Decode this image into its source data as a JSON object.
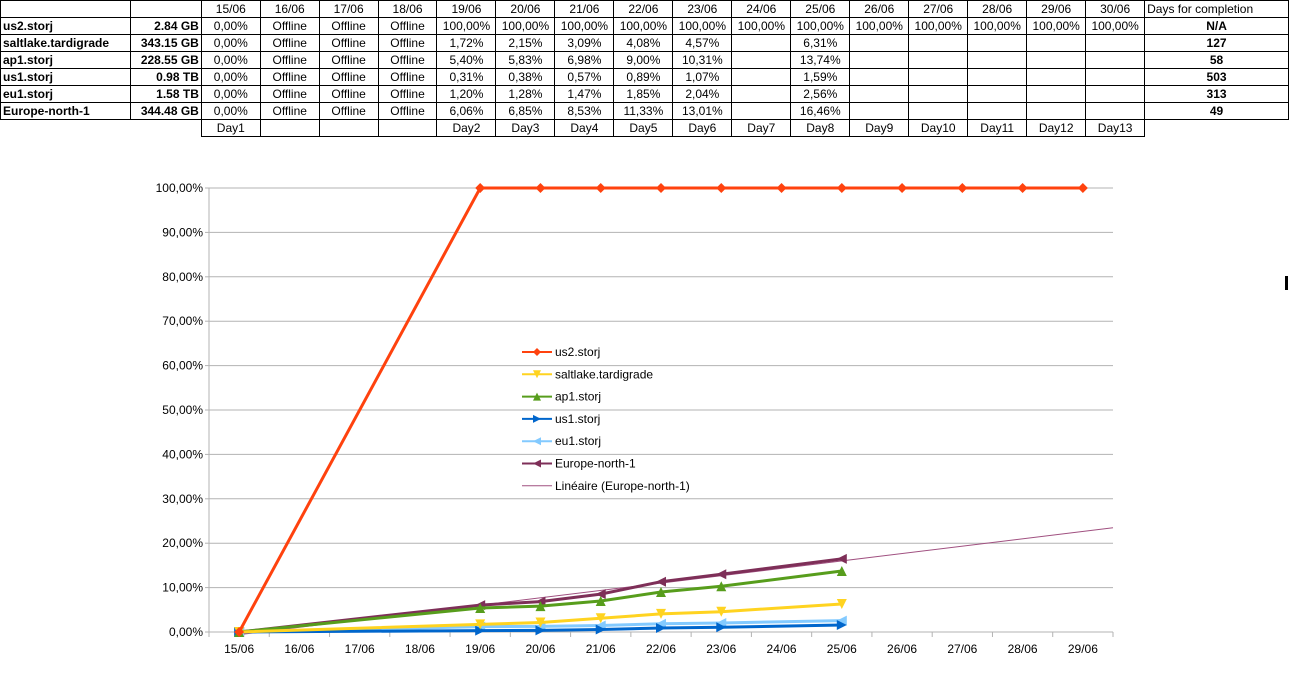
{
  "table": {
    "dates": [
      "15/06",
      "16/06",
      "17/06",
      "18/06",
      "19/06",
      "20/06",
      "21/06",
      "22/06",
      "23/06",
      "24/06",
      "25/06",
      "26/06",
      "27/06",
      "28/06",
      "29/06",
      "30/06"
    ],
    "completion_header": "Days for completion",
    "rows": [
      {
        "name": "us2.storj",
        "size": "2.84 GB",
        "values": [
          "0,00%",
          "Offline",
          "Offline",
          "Offline",
          "100,00%",
          "100,00%",
          "100,00%",
          "100,00%",
          "100,00%",
          "100,00%",
          "100,00%",
          "100,00%",
          "100,00%",
          "100,00%",
          "100,00%",
          "100,00%"
        ],
        "completion": "N/A"
      },
      {
        "name": "saltlake.tardigrade",
        "size": "343.15 GB",
        "values": [
          "0,00%",
          "Offline",
          "Offline",
          "Offline",
          "1,72%",
          "2,15%",
          "3,09%",
          "4,08%",
          "4,57%",
          "",
          "6,31%",
          "",
          "",
          "",
          "",
          ""
        ],
        "completion": "127"
      },
      {
        "name": "ap1.storj",
        "size": "228.55 GB",
        "values": [
          "0,00%",
          "Offline",
          "Offline",
          "Offline",
          "5,40%",
          "5,83%",
          "6,98%",
          "9,00%",
          "10,31%",
          "",
          "13,74%",
          "",
          "",
          "",
          "",
          ""
        ],
        "completion": "58"
      },
      {
        "name": "us1.storj",
        "size": "0.98 TB",
        "values": [
          "0,00%",
          "Offline",
          "Offline",
          "Offline",
          "0,31%",
          "0,38%",
          "0,57%",
          "0,89%",
          "1,07%",
          "",
          "1,59%",
          "",
          "",
          "",
          "",
          ""
        ],
        "completion": "503"
      },
      {
        "name": "eu1.storj",
        "size": "1.58 TB",
        "values": [
          "0,00%",
          "Offline",
          "Offline",
          "Offline",
          "1,20%",
          "1,28%",
          "1,47%",
          "1,85%",
          "2,04%",
          "",
          "2,56%",
          "",
          "",
          "",
          "",
          ""
        ],
        "completion": "313"
      },
      {
        "name": "Europe-north-1",
        "size": "344.48 GB",
        "values": [
          "0,00%",
          "Offline",
          "Offline",
          "Offline",
          "6,06%",
          "6,85%",
          "8,53%",
          "11,33%",
          "13,01%",
          "",
          "16,46%",
          "",
          "",
          "",
          "",
          ""
        ],
        "completion": "49"
      }
    ],
    "days": [
      "Day1",
      "",
      "",
      "",
      "Day2",
      "Day3",
      "Day4",
      "Day5",
      "Day6",
      "Day7",
      "Day8",
      "Day9",
      "Day10",
      "Day11",
      "Day12",
      "Day13"
    ]
  },
  "chart_data": {
    "type": "line",
    "categories": [
      "15/06",
      "16/06",
      "17/06",
      "18/06",
      "19/06",
      "20/06",
      "21/06",
      "22/06",
      "23/06",
      "24/06",
      "25/06",
      "26/06",
      "27/06",
      "28/06",
      "29/06"
    ],
    "y_ticks": [
      "0,00%",
      "10,00%",
      "20,00%",
      "30,00%",
      "40,00%",
      "50,00%",
      "60,00%",
      "70,00%",
      "80,00%",
      "90,00%",
      "100,00%"
    ],
    "ylim": [
      0,
      100
    ],
    "grid": true,
    "legend_position": "center",
    "series": [
      {
        "name": "us2.storj",
        "color": "#ff420e",
        "marker": "diamond",
        "x": [
          0,
          4,
          5,
          6,
          7,
          8,
          9,
          10,
          11,
          12,
          13,
          14
        ],
        "values": [
          0,
          100,
          100,
          100,
          100,
          100,
          100,
          100,
          100,
          100,
          100,
          100
        ]
      },
      {
        "name": "saltlake.tardigrade",
        "color": "#ffd320",
        "marker": "down",
        "x": [
          0,
          4,
          5,
          6,
          7,
          8,
          10
        ],
        "values": [
          0,
          1.72,
          2.15,
          3.09,
          4.08,
          4.57,
          6.31
        ]
      },
      {
        "name": "ap1.storj",
        "color": "#579d1c",
        "marker": "up",
        "x": [
          0,
          4,
          5,
          6,
          7,
          8,
          10
        ],
        "values": [
          0,
          5.4,
          5.83,
          6.98,
          9.0,
          10.31,
          13.74
        ]
      },
      {
        "name": "us1.storj",
        "color": "#0066cc",
        "marker": "right",
        "x": [
          0,
          4,
          5,
          6,
          7,
          8,
          10
        ],
        "values": [
          0,
          0.31,
          0.38,
          0.57,
          0.89,
          1.07,
          1.59
        ]
      },
      {
        "name": "eu1.storj",
        "color": "#83caff",
        "marker": "left",
        "x": [
          0,
          4,
          5,
          6,
          7,
          8,
          10
        ],
        "values": [
          0,
          1.2,
          1.28,
          1.47,
          1.85,
          2.04,
          2.56
        ]
      },
      {
        "name": "Europe-north-1",
        "color": "#7e2f58",
        "marker": "left",
        "x": [
          0,
          4,
          5,
          6,
          7,
          8,
          10
        ],
        "values": [
          0,
          6.06,
          6.85,
          8.53,
          11.33,
          13.01,
          16.46
        ]
      }
    ],
    "trendline": {
      "name": "Linéaire (Europe-north-1)",
      "of": "Europe-north-1",
      "color": "#a05080"
    }
  }
}
